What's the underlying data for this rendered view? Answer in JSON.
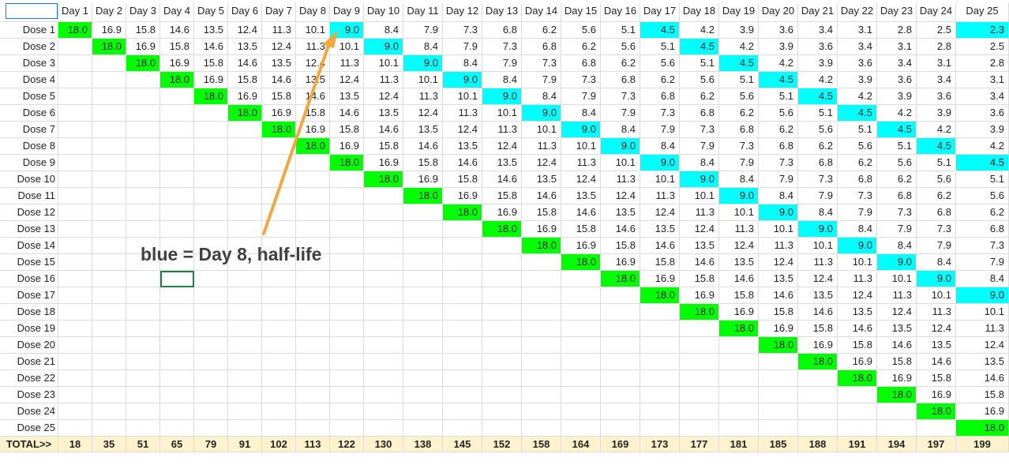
{
  "sheet": {
    "columns": [
      "Day 1",
      "Day 2",
      "Day 3",
      "Day 4",
      "Day 5",
      "Day 6",
      "Day 7",
      "Day 8",
      "Day 9",
      "Day 10",
      "Day 11",
      "Day 12",
      "Day 13",
      "Day 14",
      "Day 15",
      "Day 16",
      "Day 17",
      "Day 18",
      "Day 19",
      "Day 20",
      "Day 21",
      "Day 22",
      "Day 23",
      "Day 24",
      "Day 25"
    ],
    "decay_values": [
      "18.0",
      "16.9",
      "15.8",
      "14.6",
      "13.5",
      "12.4",
      "11.3",
      "10.1",
      "9.0",
      "8.4",
      "7.9",
      "7.3",
      "6.8",
      "6.2",
      "5.6",
      "5.1",
      "4.5",
      "4.2",
      "3.9",
      "3.6",
      "3.4",
      "3.1",
      "2.8",
      "2.5",
      "2.3"
    ],
    "rows": [
      "Dose 1",
      "Dose 2",
      "Dose 3",
      "Dose 4",
      "Dose 5",
      "Dose 6",
      "Dose 7",
      "Dose 8",
      "Dose 9",
      "Dose 10",
      "Dose 11",
      "Dose 12",
      "Dose 13",
      "Dose 14",
      "Dose 15",
      "Dose 16",
      "Dose 17",
      "Dose 18",
      "Dose 19",
      "Dose 20",
      "Dose 21",
      "Dose 22",
      "Dose 23",
      "Dose 24",
      "Dose 25"
    ],
    "total_label": "TOTAL>>",
    "totals": [
      "18",
      "35",
      "51",
      "65",
      "79",
      "91",
      "102",
      "113",
      "122",
      "130",
      "138",
      "145",
      "152",
      "158",
      "164",
      "169",
      "173",
      "177",
      "181",
      "185",
      "188",
      "191",
      "194",
      "197",
      "199"
    ],
    "colors": {
      "dose_day": "#00ff00",
      "half_life": "#00ffff",
      "total_row": "#fff2cc",
      "arrow": "#f4a73a"
    }
  },
  "annotation": {
    "text": "blue =  Day 8, half-life"
  }
}
